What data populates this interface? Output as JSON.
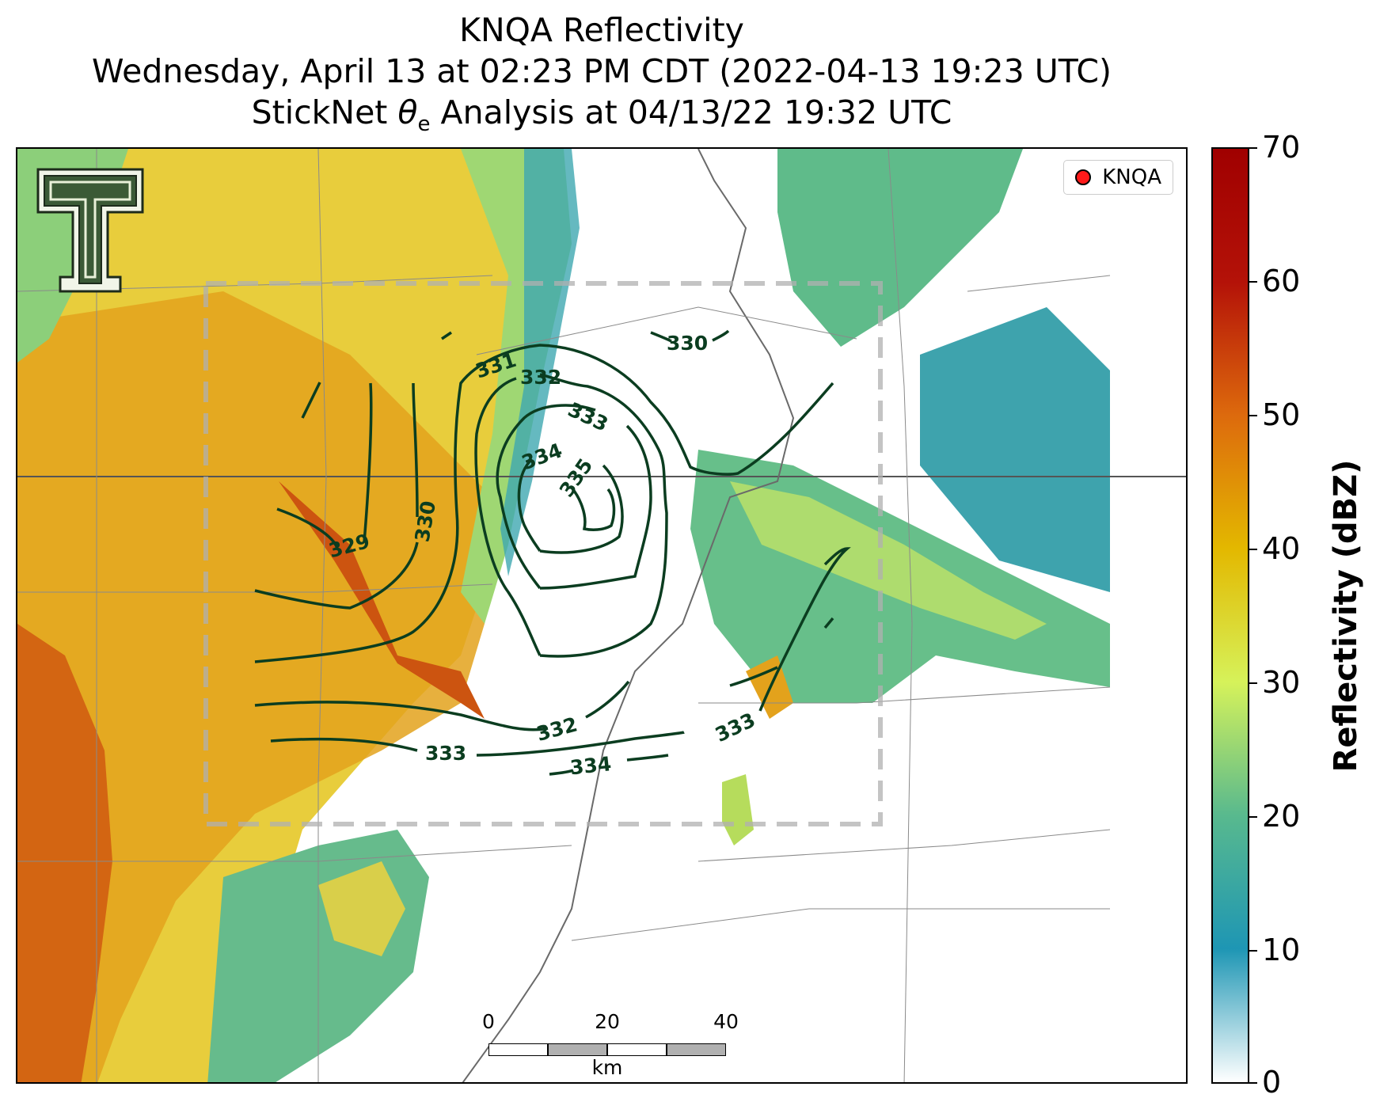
{
  "title": {
    "line1": "KNQA Reflectivity",
    "line2": "Wednesday, April 13 at 02:23 PM CDT (2022-04-13 19:23 UTC)",
    "line3_prefix": "StickNet ",
    "line3_symbol": "θ",
    "line3_sub": "e",
    "line3_suffix": " Analysis at 04/13/22 19:32 UTC"
  },
  "legend": {
    "label": "KNQA",
    "marker_color": "#ff1a1a"
  },
  "scale_bar": {
    "ticks": [
      "0",
      "20",
      "40"
    ],
    "unit": "km"
  },
  "colorbar": {
    "title": "Reflectivity (dBZ)",
    "ticks": [
      "70",
      "60",
      "50",
      "40",
      "30",
      "20",
      "10",
      "0"
    ],
    "range": [
      0,
      70
    ],
    "colors": [
      "#ffffff",
      "#1e96b4",
      "#58b98e",
      "#d6f25a",
      "#e3b800",
      "#dd6a0d",
      "#b41208",
      "#a00000"
    ]
  },
  "contour_color": "#0b3d20",
  "contour_labels": [
    "329",
    "330",
    "331",
    "332",
    "333",
    "334",
    "335",
    "330",
    "332",
    "333",
    "333",
    "334"
  ],
  "logo": {
    "name": "Texas Tech Double T"
  }
}
